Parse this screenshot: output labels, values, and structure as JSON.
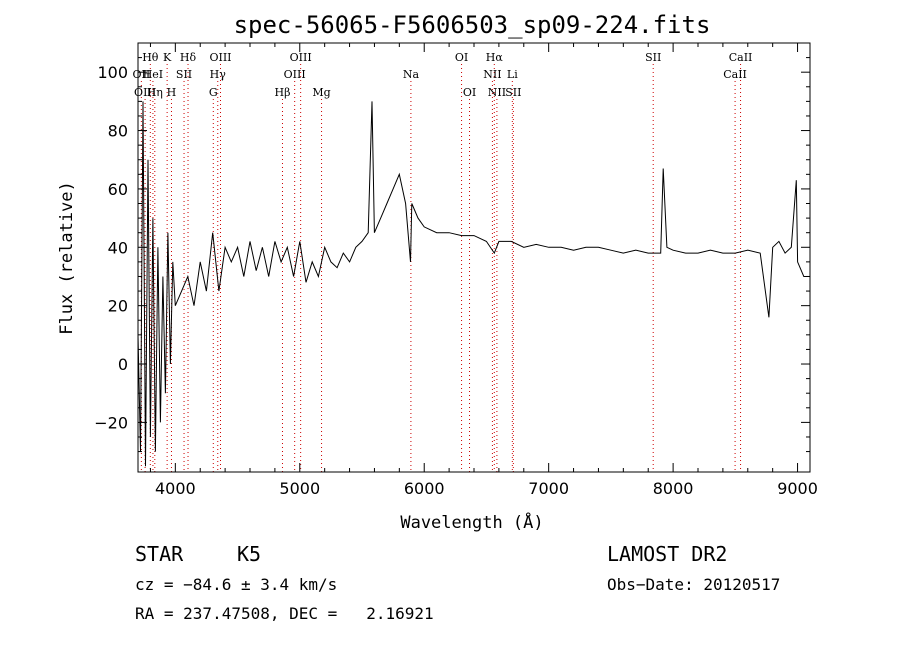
{
  "chart_data": {
    "type": "line",
    "title": "spec-56065-F5606503_sp09-224.fits",
    "xlabel": "Wavelength (Å)",
    "ylabel": "Flux (relative)",
    "xlim": [
      3700,
      9100
    ],
    "ylim": [
      -37,
      110
    ],
    "x_ticks": [
      4000,
      5000,
      6000,
      7000,
      8000,
      9000
    ],
    "y_ticks": [
      -20,
      0,
      20,
      40,
      60,
      80,
      100
    ],
    "grid": false,
    "series": [
      {
        "x": [
          3700,
          3720,
          3740,
          3760,
          3780,
          3800,
          3820,
          3840,
          3860,
          3880,
          3900,
          3920,
          3940,
          3960,
          3980,
          4000,
          4050,
          4100,
          4150,
          4200,
          4250,
          4300,
          4350,
          4400,
          4450,
          4500,
          4550,
          4600,
          4650,
          4700,
          4750,
          4800,
          4850,
          4900,
          4950,
          5000,
          5050,
          5100,
          5150,
          5200,
          5250,
          5300,
          5350,
          5400,
          5450,
          5500,
          5550,
          5580,
          5600,
          5650,
          5700,
          5750,
          5800,
          5850,
          5890,
          5900,
          5950,
          6000,
          6100,
          6200,
          6300,
          6400,
          6500,
          6563,
          6600,
          6700,
          6800,
          6900,
          7000,
          7100,
          7200,
          7300,
          7400,
          7500,
          7600,
          7700,
          7800,
          7900,
          7920,
          7950,
          8000,
          8100,
          8200,
          8300,
          8400,
          8500,
          8600,
          8700,
          8770,
          8800,
          8850,
          8900,
          8950,
          8990,
          9000,
          9050,
          9100
        ],
        "y": [
          10,
          -30,
          90,
          -35,
          70,
          -25,
          50,
          -30,
          40,
          -20,
          30,
          -10,
          45,
          0,
          35,
          20,
          25,
          30,
          20,
          35,
          25,
          45,
          25,
          40,
          35,
          40,
          30,
          42,
          32,
          40,
          30,
          42,
          35,
          40,
          30,
          42,
          28,
          35,
          30,
          40,
          35,
          33,
          38,
          35,
          40,
          42,
          45,
          90,
          45,
          50,
          55,
          60,
          65,
          55,
          35,
          55,
          50,
          47,
          45,
          45,
          44,
          44,
          42,
          38,
          42,
          42,
          40,
          41,
          40,
          40,
          39,
          40,
          40,
          39,
          38,
          39,
          38,
          38,
          67,
          40,
          39,
          38,
          38,
          39,
          38,
          38,
          39,
          38,
          16,
          40,
          42,
          38,
          40,
          63,
          35,
          30,
          30
        ]
      }
    ],
    "line_markers": [
      {
        "label": "Hθ",
        "x": 3799,
        "row": 0
      },
      {
        "label": "OII",
        "x": 3727,
        "row": 1
      },
      {
        "label": "OIII",
        "x": 3757,
        "row": 2
      },
      {
        "label": "HeI",
        "x": 3820,
        "row": 1
      },
      {
        "label": "Hη",
        "x": 3835,
        "row": 2
      },
      {
        "label": "K",
        "x": 3934,
        "row": 0
      },
      {
        "label": "SII",
        "x": 4070,
        "row": 1
      },
      {
        "label": "H",
        "x": 3969,
        "row": 2
      },
      {
        "label": "Hδ",
        "x": 4102,
        "row": 0
      },
      {
        "label": "OIII",
        "x": 4363,
        "row": 0
      },
      {
        "label": "Hγ",
        "x": 4341,
        "row": 1
      },
      {
        "label": "G",
        "x": 4305,
        "row": 2
      },
      {
        "label": "OIII",
        "x": 5007,
        "row": 0
      },
      {
        "label": "OIII",
        "x": 4959,
        "row": 1
      },
      {
        "label": "Hβ",
        "x": 4861,
        "row": 2
      },
      {
        "label": "Mg",
        "x": 5175,
        "row": 2
      },
      {
        "label": "Na",
        "x": 5893,
        "row": 1
      },
      {
        "label": "OI",
        "x": 6300,
        "row": 0
      },
      {
        "label": "OI",
        "x": 6364,
        "row": 2
      },
      {
        "label": "Hα",
        "x": 6563,
        "row": 0
      },
      {
        "label": "NII",
        "x": 6548,
        "row": 1
      },
      {
        "label": "NII",
        "x": 6584,
        "row": 2
      },
      {
        "label": "SII",
        "x": 6716,
        "row": 2
      },
      {
        "label": "Li",
        "x": 6708,
        "row": 1
      },
      {
        "label": "SII",
        "x": 7840,
        "row": 0
      },
      {
        "label": "CaII",
        "x": 8542,
        "row": 0
      },
      {
        "label": "CaII",
        "x": 8498,
        "row": 1
      }
    ],
    "line_color": "#000000",
    "marker_color": "#cc0000"
  },
  "info": {
    "class": "STAR",
    "subclass": "K5",
    "survey": "LAMOST DR2",
    "cz": "cz = −84.6 ± 3.4 km/s",
    "obsdate": "Obs−Date: 20120517",
    "radec": "RA = 237.47508, DEC =   2.16921"
  }
}
